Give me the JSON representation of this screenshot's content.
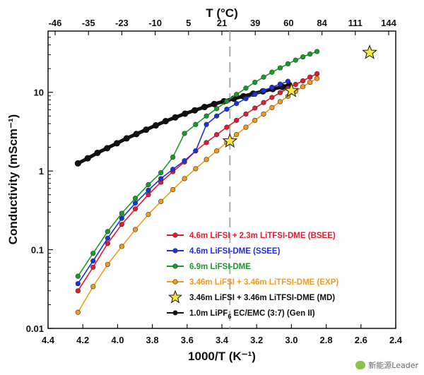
{
  "chart_data": {
    "type": "scatter",
    "xlabel": "1000/T (K⁻¹)",
    "ylabel": "Conductivity (mScm⁻¹)",
    "top_xlabel": "T (°C)",
    "xlim": [
      4.4,
      2.4
    ],
    "ylim": [
      0.01,
      60
    ],
    "y_scale": "log",
    "x_ticks": [
      "4.4",
      "4.2",
      "4.0",
      "3.8",
      "3.6",
      "3.4",
      "3.2",
      "3.0",
      "2.8",
      "2.6",
      "2.4"
    ],
    "y_ticks": [
      {
        "value": 0.01,
        "label": "0.01"
      },
      {
        "value": 0.1,
        "label": "0.1"
      },
      {
        "value": 1,
        "label": "1"
      },
      {
        "value": 10,
        "label": "10"
      }
    ],
    "top_ticks": [
      "-46",
      "-35",
      "-23",
      "-10",
      "5",
      "21",
      "39",
      "60",
      "84",
      "111",
      "144"
    ],
    "reference_line_x": 3.354,
    "legend_position": "bottom-right",
    "series": [
      {
        "name": "4.6m LiFSI + 2.3m LiTFSI-DME (BSEE)",
        "color": "#e8192c",
        "marker": "circle",
        "x": [
          4.228,
          4.141,
          4.057,
          3.976,
          3.898,
          3.823,
          3.751,
          3.682,
          3.615,
          3.551,
          3.489,
          3.43,
          3.372,
          3.316,
          3.262,
          3.21,
          3.16,
          3.112,
          3.065,
          3.02,
          2.976,
          2.934,
          2.893,
          2.853
        ],
        "y": [
          0.03,
          0.06,
          0.12,
          0.21,
          0.33,
          0.5,
          0.72,
          0.98,
          1.3,
          1.8,
          2.3,
          2.9,
          3.6,
          4.4,
          5.3,
          6.3,
          7.4,
          8.6,
          9.9,
          11.2,
          12.6,
          14.0,
          15.6,
          17.2
        ]
      },
      {
        "name": "4.6m LiFSI-DME (SSEE)",
        "color": "#1d2fe0",
        "marker": "circle",
        "x": [
          4.228,
          4.141,
          4.057,
          3.976,
          3.898,
          3.823,
          3.751,
          3.682,
          3.615,
          3.551,
          3.489,
          3.43,
          3.372,
          3.316,
          3.262,
          3.21,
          3.16,
          3.112,
          3.065,
          3.02
        ],
        "y": [
          0.037,
          0.072,
          0.14,
          0.25,
          0.39,
          0.57,
          0.8,
          1.05,
          1.35,
          1.8,
          3.9,
          5.0,
          6.1,
          7.2,
          8.3,
          9.4,
          10.5,
          11.6,
          12.7,
          13.8
        ]
      },
      {
        "name": "6.9m LiFSI-DME",
        "color": "#1a9a2a",
        "marker": "circle",
        "x": [
          4.228,
          4.141,
          4.057,
          3.976,
          3.898,
          3.823,
          3.751,
          3.682,
          3.615,
          3.551,
          3.489,
          3.43,
          3.372,
          3.316,
          3.262,
          3.21,
          3.16,
          3.112,
          3.065,
          3.02,
          2.976,
          2.934,
          2.893,
          2.853
        ],
        "y": [
          0.046,
          0.09,
          0.17,
          0.29,
          0.45,
          0.67,
          0.95,
          1.5,
          3.0,
          3.9,
          5.0,
          6.2,
          7.7,
          9.4,
          11.3,
          13.4,
          15.6,
          18.0,
          20.4,
          23.0,
          25.6,
          28.2,
          30.6,
          33.0
        ]
      },
      {
        "name": "3.46m LiFSI + 3.46m LiTFSI-DME (EXP)",
        "color": "#f39a1e",
        "marker": "circle",
        "x": [
          4.228,
          4.141,
          4.057,
          3.976,
          3.898,
          3.823,
          3.751,
          3.682,
          3.615,
          3.551,
          3.489,
          3.43,
          3.372,
          3.316,
          3.262,
          3.21,
          3.16,
          3.112,
          3.065,
          3.02,
          2.976,
          2.934,
          2.893,
          2.853
        ],
        "y": [
          0.016,
          0.034,
          0.065,
          0.11,
          0.18,
          0.28,
          0.41,
          0.58,
          0.8,
          1.07,
          1.4,
          1.8,
          2.3,
          2.9,
          3.6,
          4.4,
          5.3,
          6.4,
          7.6,
          8.9,
          10.3,
          11.8,
          13.4,
          15.0
        ]
      },
      {
        "name": "3.46m LiFSI + 3.46m LiTFSI-DME (MD)",
        "color": "#f6e83c",
        "marker": "star",
        "x": [
          3.354,
          3.0,
          2.55
        ],
        "y": [
          2.4,
          10.5,
          32.0
        ]
      },
      {
        "name": "1.0m LiPF₆ EC/EMC (3:7) (Gen II)",
        "color": "#111111",
        "marker": "circle",
        "x": [
          4.228,
          4.172,
          4.116,
          4.06,
          4.004,
          3.948,
          3.892,
          3.836,
          3.78,
          3.724,
          3.668,
          3.612,
          3.556,
          3.5,
          3.444,
          3.388,
          3.332,
          3.276,
          3.22,
          3.164,
          3.108,
          3.052,
          3.012
        ],
        "y": [
          1.25,
          1.45,
          1.7,
          1.95,
          2.25,
          2.6,
          2.95,
          3.35,
          3.8,
          4.3,
          4.8,
          5.35,
          5.9,
          6.5,
          7.1,
          7.7,
          8.3,
          8.9,
          9.6,
          10.3,
          11.0,
          11.7,
          12.4
        ]
      }
    ]
  },
  "legend_labels": [
    {
      "pre": "4.6m LiFSI + 2.3m LiTFSI-DME (BSEE)",
      "sub": "",
      "post": ""
    },
    {
      "pre": "4.6m LiFSI-DME (SSEE)",
      "sub": "",
      "post": ""
    },
    {
      "pre": "6.9m LiFSI-DME",
      "sub": "",
      "post": ""
    },
    {
      "pre": "3.46m LiFSI + 3.46m LiTFSI-DME (EXP)",
      "sub": "",
      "post": ""
    },
    {
      "pre": "3.46m LiFSI + 3.46m LiTFSI-DME (MD)",
      "sub": "",
      "post": ""
    },
    {
      "pre": "1.0m LiPF",
      "sub": "6",
      "post": " EC/EMC (3:7) (Gen II)"
    }
  ],
  "watermark": {
    "text": "新能源Leader",
    "icon": "wechat-icon"
  }
}
